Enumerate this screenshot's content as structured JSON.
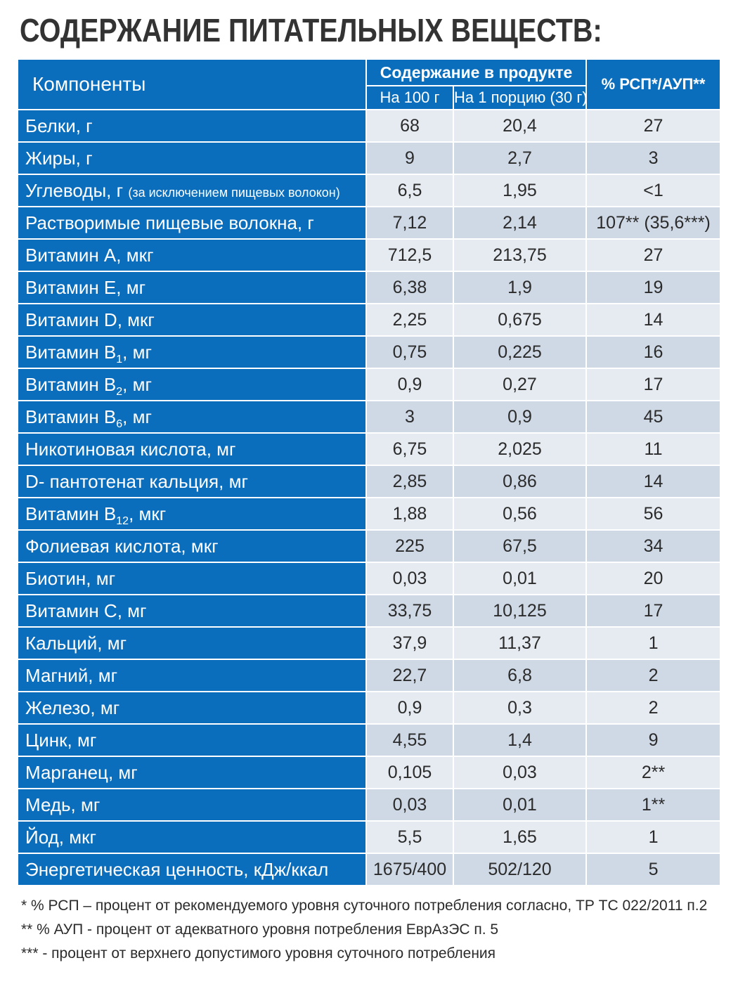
{
  "title": "СОДЕРЖАНИЕ ПИТАТЕЛЬНЫХ ВЕЩЕСТВ:",
  "header": {
    "components": "Компоненты",
    "content_group": "Содержание в продукте",
    "per_100": "На 100 г",
    "per_portion": "На 1 порцию (30 г)",
    "percent": "% РСП*/АУП**"
  },
  "rows": [
    {
      "name": "Белки, г",
      "a": "68",
      "b": "20,4",
      "c": "27"
    },
    {
      "name": "Жиры, г",
      "a": "9",
      "b": "2,7",
      "c": "3"
    },
    {
      "name": "Углеводы, г",
      "note": "(за исключением пищевых волокон)",
      "a": "6,5",
      "b": "1,95",
      "c": "<1"
    },
    {
      "name": "Растворимые пищевые волокна, г",
      "a": "7,12",
      "b": "2,14",
      "c": "107** (35,6***)"
    },
    {
      "name": "Витамин А, мкг",
      "a": "712,5",
      "b": "213,75",
      "c": "27"
    },
    {
      "name": "Витамин Е, мг",
      "a": "6,38",
      "b": "1,9",
      "c": "19"
    },
    {
      "name": "Витамин D, мкг",
      "a": "2,25",
      "b": "0,675",
      "c": "14"
    },
    {
      "name": "Витамин B",
      "sub": "1",
      "suffix": ", мг",
      "a": "0,75",
      "b": "0,225",
      "c": "16"
    },
    {
      "name": "Витамин B",
      "sub": "2",
      "suffix": ", мг",
      "a": "0,9",
      "b": "0,27",
      "c": "17"
    },
    {
      "name": "Витамин B",
      "sub": "6",
      "suffix": ", мг",
      "a": "3",
      "b": "0,9",
      "c": "45"
    },
    {
      "name": "Никотиновая кислота, мг",
      "a": "6,75",
      "b": "2,025",
      "c": "11"
    },
    {
      "name": "D- пантотенат кальция, мг",
      "a": "2,85",
      "b": "0,86",
      "c": "14"
    },
    {
      "name": "Витамин B",
      "sub": "12",
      "suffix": ", мкг",
      "a": "1,88",
      "b": "0,56",
      "c": "56"
    },
    {
      "name": "Фолиевая кислота, мкг",
      "a": "225",
      "b": "67,5",
      "c": "34"
    },
    {
      "name": "Биотин, мг",
      "a": "0,03",
      "b": "0,01",
      "c": "20"
    },
    {
      "name": "Витамин С, мг",
      "a": "33,75",
      "b": "10,125",
      "c": "17"
    },
    {
      "name": "Кальций, мг",
      "a": "37,9",
      "b": "11,37",
      "c": "1"
    },
    {
      "name": "Магний, мг",
      "a": "22,7",
      "b": "6,8",
      "c": "2"
    },
    {
      "name": "Железо, мг",
      "a": "0,9",
      "b": "0,3",
      "c": "2"
    },
    {
      "name": "Цинк, мг",
      "a": "4,55",
      "b": "1,4",
      "c": "9"
    },
    {
      "name": "Марганец, мг",
      "a": "0,105",
      "b": "0,03",
      "c": "2**"
    },
    {
      "name": "Медь, мг",
      "a": "0,03",
      "b": "0,01",
      "c": "1**"
    },
    {
      "name": "Йод, мкг",
      "a": "5,5",
      "b": "1,65",
      "c": "1"
    },
    {
      "name": "Энергетическая ценность, кДж/ккал",
      "a": "1675/400",
      "b": "502/120",
      "c": "5"
    }
  ],
  "notes": [
    "* % РСП – процент от рекомендуемого уровня суточного потребления согласно, ТР ТС 022/2011 п.2",
    "** % АУП - процент от адекватного уровня потребления ЕврАзЭС п. 5",
    "*** - процент от верхнего допустимого уровня суточного потребления"
  ],
  "colors": {
    "header_blue": "#0a6ebd",
    "row_light": "#e6ebf2",
    "row_dark": "#cfd9e6"
  }
}
